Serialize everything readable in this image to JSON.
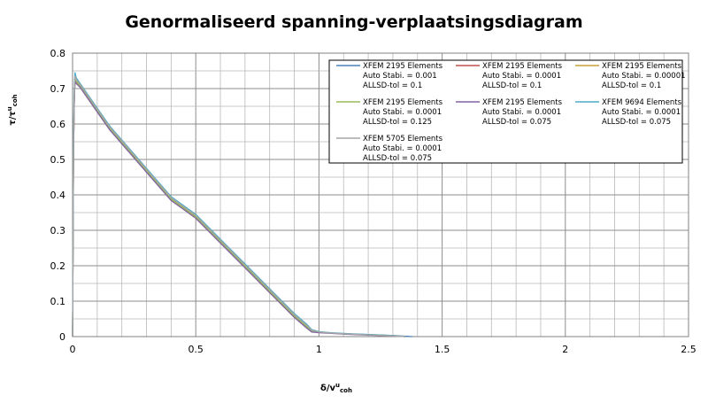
{
  "chart_data": {
    "type": "line",
    "title": "Genormaliseerd spanning-verplaatsingsdiagram",
    "xlabel": {
      "main": "δ/v",
      "sup": "u",
      "sub": "coh"
    },
    "ylabel": {
      "main": "τ/τ",
      "sup": "u",
      "sub": "coh"
    },
    "xlim": [
      0,
      2.5
    ],
    "ylim": [
      0,
      0.8
    ],
    "x_ticks": [
      0,
      0.5,
      1,
      1.5,
      2,
      2.5
    ],
    "y_ticks": [
      0,
      0.1,
      0.2,
      0.3,
      0.4,
      0.5,
      0.6,
      0.7,
      0.8
    ],
    "x_tick_labels": [
      "0",
      "0.5",
      "1",
      "1.5",
      "2",
      "2.5"
    ],
    "y_tick_labels": [
      "0",
      "0.1",
      "0.2",
      "0.3",
      "0.4",
      "0.5",
      "0.6",
      "0.7",
      "0.8"
    ],
    "grid": true,
    "legend_position": "top-right",
    "series": [
      {
        "name": "XFEM 2195 Elements | Auto Stabi. = 0.001 | ALLSD-tol = 0.1",
        "legend_lines": [
          "XFEM 2195 Elements",
          "Auto Stabi. = 0.001",
          "ALLSD-tol = 0.1"
        ],
        "color": "#4f81bd",
        "x": [
          0,
          0.002,
          0.004,
          0.006,
          0.008,
          0.01,
          0.015,
          0.03,
          0.05,
          0.1,
          0.15,
          0.2,
          0.3,
          0.4,
          0.5,
          0.6,
          0.7,
          0.8,
          0.9,
          0.95,
          0.97,
          1.0,
          1.05,
          1.1,
          1.2,
          1.3,
          1.38
        ],
        "y": [
          0,
          0.3,
          0.55,
          0.64,
          0.7,
          0.73,
          0.72,
          0.71,
          0.69,
          0.64,
          0.59,
          0.55,
          0.47,
          0.39,
          0.34,
          0.27,
          0.2,
          0.13,
          0.06,
          0.03,
          0.016,
          0.012,
          0.01,
          0.008,
          0.006,
          0.003,
          0
        ]
      },
      {
        "name": "XFEM 2195 Elements | Auto Stabi. = 0.0001 | ALLSD-tol = 0.1",
        "legend_lines": [
          "XFEM 2195 Elements",
          "Auto Stabi. = 0.0001",
          "ALLSD-tol = 0.1"
        ],
        "color": "#c0504d",
        "x": [
          0,
          0.002,
          0.004,
          0.006,
          0.008,
          0.01,
          0.015,
          0.03,
          0.05,
          0.1,
          0.15,
          0.2,
          0.3,
          0.4,
          0.5,
          0.6,
          0.7,
          0.8,
          0.9,
          0.95,
          0.97,
          1.0,
          1.05,
          1.1,
          1.2,
          1.3,
          1.35
        ],
        "y": [
          0,
          0.28,
          0.52,
          0.63,
          0.69,
          0.72,
          0.715,
          0.705,
          0.685,
          0.635,
          0.585,
          0.545,
          0.465,
          0.385,
          0.335,
          0.265,
          0.195,
          0.125,
          0.055,
          0.025,
          0.014,
          0.012,
          0.01,
          0.008,
          0.005,
          0.002,
          0
        ]
      },
      {
        "name": "XFEM 2195 Elements | Auto Stabi. = 0.00001 | ALLSD-tol = 0.1",
        "legend_lines": [
          "XFEM 2195 Elements",
          "Auto Stabi. = 0.00001",
          "ALLSD-tol = 0.1"
        ],
        "color": "#c7a23a",
        "x": [
          0,
          0.002,
          0.004,
          0.006,
          0.008,
          0.01,
          0.015,
          0.03,
          0.05,
          0.1,
          0.15,
          0.2,
          0.3,
          0.4,
          0.5,
          0.6,
          0.7,
          0.8,
          0.9,
          0.95,
          0.97,
          1.0,
          1.05,
          1.1,
          1.2,
          1.3,
          1.35
        ],
        "y": [
          0,
          0.29,
          0.53,
          0.635,
          0.695,
          0.725,
          0.718,
          0.707,
          0.687,
          0.637,
          0.587,
          0.547,
          0.467,
          0.387,
          0.337,
          0.267,
          0.197,
          0.127,
          0.057,
          0.027,
          0.015,
          0.012,
          0.01,
          0.008,
          0.005,
          0.002,
          0
        ]
      },
      {
        "name": "XFEM 2195 Elements | Auto Stabi. = 0.0001 | ALLSD-tol = 0.125",
        "legend_lines": [
          "XFEM 2195 Elements",
          "Auto Stabi. = 0.0001",
          "ALLSD-tol = 0.125"
        ],
        "color": "#9bbb59",
        "x": [
          0,
          0.002,
          0.004,
          0.006,
          0.008,
          0.01,
          0.015,
          0.03,
          0.05,
          0.1,
          0.15,
          0.2,
          0.3,
          0.4,
          0.5,
          0.6,
          0.7,
          0.8,
          0.9,
          0.95,
          0.97,
          1.0,
          1.05,
          1.1,
          1.2,
          1.3,
          1.35
        ],
        "y": [
          0,
          0.29,
          0.54,
          0.64,
          0.7,
          0.728,
          0.72,
          0.708,
          0.688,
          0.638,
          0.588,
          0.548,
          0.468,
          0.388,
          0.338,
          0.268,
          0.198,
          0.128,
          0.058,
          0.028,
          0.015,
          0.012,
          0.01,
          0.008,
          0.005,
          0.002,
          0
        ]
      },
      {
        "name": "XFEM 2195 Elements | Auto Stabi. = 0.0001 | ALLSD-tol = 0.075",
        "legend_lines": [
          "XFEM 2195 Elements",
          "Auto Stabi. = 0.0001",
          "ALLSD-tol = 0.075"
        ],
        "color": "#8064a2",
        "x": [
          0,
          0.002,
          0.004,
          0.006,
          0.008,
          0.01,
          0.015,
          0.03,
          0.05,
          0.1,
          0.15,
          0.2,
          0.3,
          0.4,
          0.5,
          0.6,
          0.7,
          0.8,
          0.9,
          0.95,
          0.97,
          1.0,
          1.05,
          1.1,
          1.2,
          1.3,
          1.35
        ],
        "y": [
          0,
          0.28,
          0.52,
          0.63,
          0.69,
          0.72,
          0.714,
          0.704,
          0.684,
          0.634,
          0.584,
          0.544,
          0.464,
          0.384,
          0.334,
          0.264,
          0.194,
          0.124,
          0.054,
          0.024,
          0.013,
          0.011,
          0.009,
          0.007,
          0.004,
          0.002,
          0
        ]
      },
      {
        "name": "XFEM 9694 Elements | Auto Stabi. = 0.0001 | ALLSD-tol = 0.075",
        "legend_lines": [
          "XFEM 9694 Elements",
          "Auto Stabi. = 0.0001",
          "ALLSD-tol = 0.075"
        ],
        "color": "#4bacc6",
        "x": [
          0,
          0.002,
          0.004,
          0.006,
          0.008,
          0.01,
          0.015,
          0.03,
          0.05,
          0.1,
          0.15,
          0.2,
          0.3,
          0.4,
          0.5,
          0.6,
          0.7,
          0.8,
          0.9,
          0.95,
          0.97,
          1.0,
          1.05,
          1.1,
          1.2,
          1.3,
          1.35
        ],
        "y": [
          0,
          0.32,
          0.58,
          0.67,
          0.72,
          0.745,
          0.73,
          0.715,
          0.695,
          0.645,
          0.595,
          0.555,
          0.475,
          0.395,
          0.345,
          0.275,
          0.205,
          0.135,
          0.065,
          0.035,
          0.02,
          0.014,
          0.011,
          0.009,
          0.006,
          0.003,
          0
        ]
      },
      {
        "name": "XFEM 5705 Elements | Auto Stabi. = 0.0001 | ALLSD-tol = 0.075",
        "legend_lines": [
          "XFEM 5705 Elements",
          "Auto Stabi. = 0.0001",
          "ALLSD-tol = 0.075"
        ],
        "color": "#a6a6a6",
        "x": [
          0,
          0.002,
          0.004,
          0.006,
          0.008,
          0.01,
          0.015,
          0.03,
          0.05,
          0.1,
          0.15,
          0.2,
          0.3,
          0.4,
          0.5,
          0.6,
          0.7,
          0.8,
          0.9,
          0.95,
          0.97,
          1.0,
          1.05,
          1.1,
          1.2,
          1.3,
          1.35
        ],
        "y": [
          0,
          0.31,
          0.56,
          0.65,
          0.71,
          0.735,
          0.725,
          0.712,
          0.692,
          0.642,
          0.592,
          0.552,
          0.472,
          0.392,
          0.342,
          0.272,
          0.202,
          0.132,
          0.062,
          0.032,
          0.018,
          0.013,
          0.01,
          0.008,
          0.005,
          0.002,
          0
        ]
      }
    ]
  }
}
